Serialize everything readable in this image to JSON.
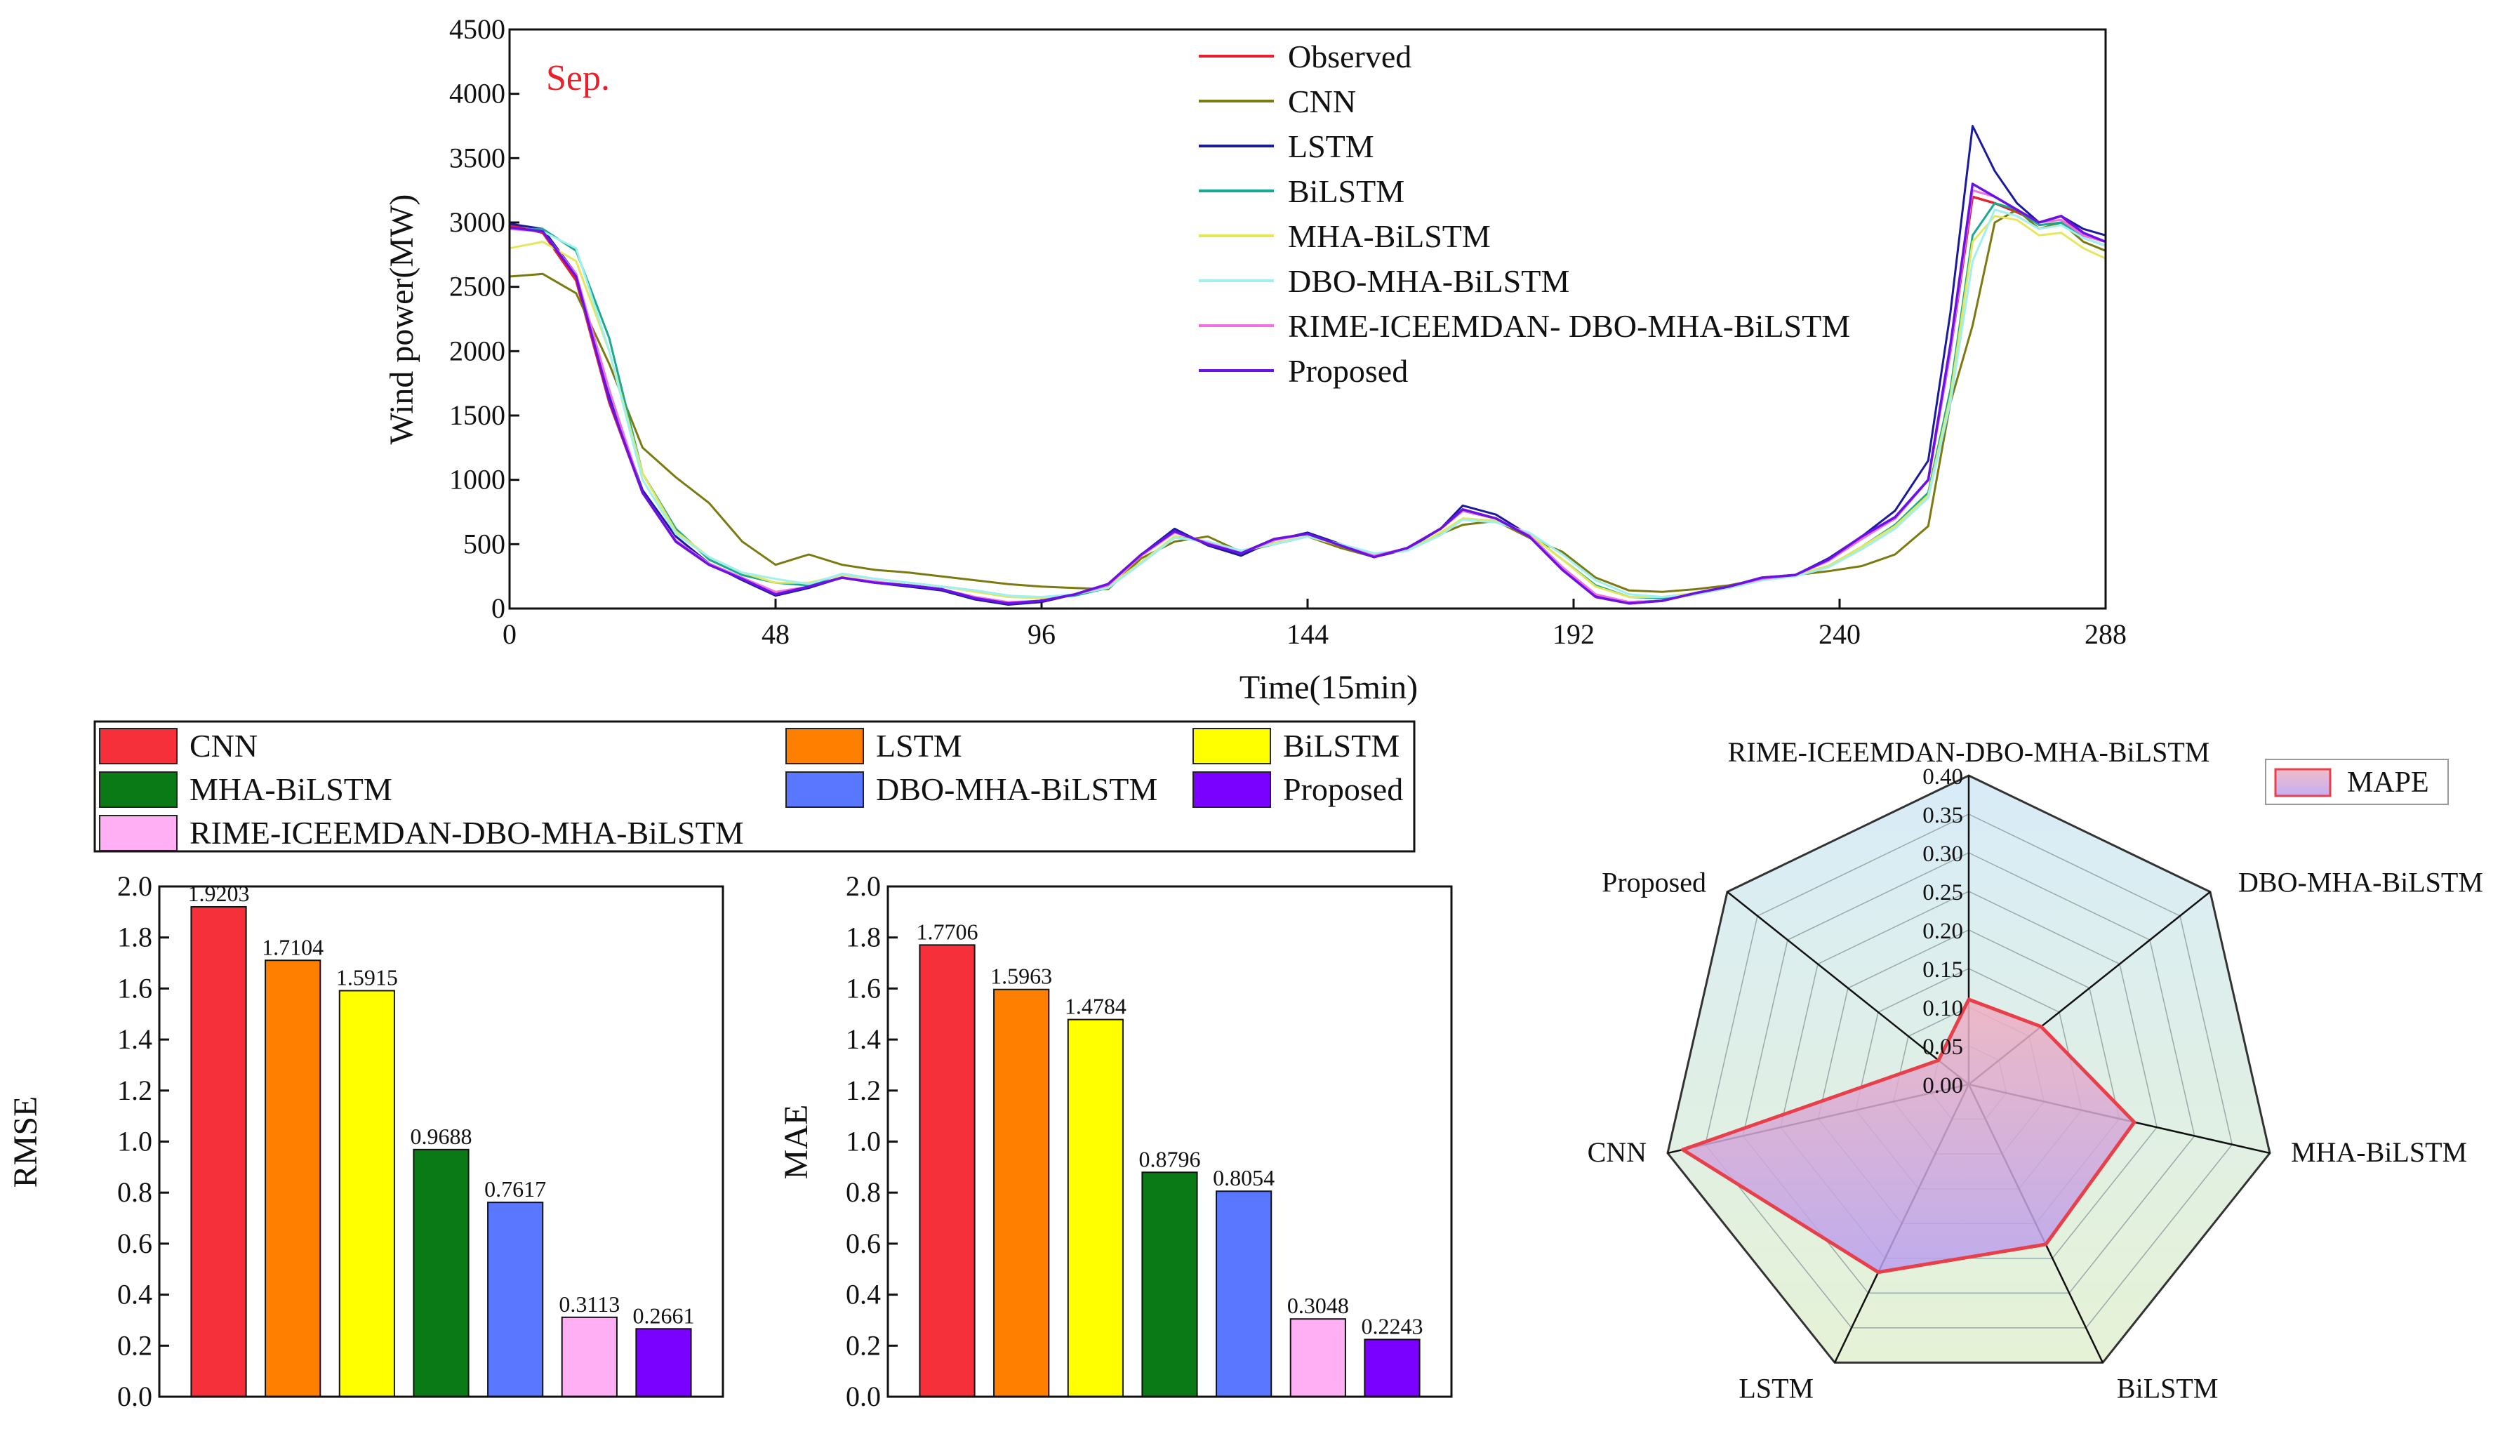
{
  "figure": {
    "colors": {
      "Observed": "#e8202a",
      "CNN": "#7a7a10",
      "LSTM": "#1a1a9e",
      "BiLSTM": "#1aa890",
      "MHA-BiLSTM": "#e6e65a",
      "DBO-MHA-BiLSTM": "#9ff0ee",
      "RIME-ICEEMDAN- DBO-MHA-BiLSTM": "#f070e0",
      "Proposed": "#6a12e6",
      "bar_CNN": "#f5303a",
      "bar_LSTM": "#ff8000",
      "bar_BiLSTM": "#ffff00",
      "bar_MHA": "#0a7a16",
      "bar_DBO": "#5a78ff",
      "bar_RIME": "#ffb0f4",
      "bar_Proposed": "#7a00ff",
      "radar_line": "#e8404a",
      "radar_fill": "#c9a8ef",
      "radar_outer_top": "#d8ecf8",
      "radar_outer_bottom": "#e6f2d6"
    },
    "bar_legend": {
      "items": [
        {
          "label": "CNN",
          "color_key": "bar_CNN"
        },
        {
          "label": "LSTM",
          "color_key": "bar_LSTM"
        },
        {
          "label": "BiLSTM",
          "color_key": "bar_BiLSTM"
        },
        {
          "label": "MHA-BiLSTM",
          "color_key": "bar_MHA"
        },
        {
          "label": "DBO-MHA-BiLSTM",
          "color_key": "bar_DBO"
        },
        {
          "label": "Proposed",
          "color_key": "bar_Proposed"
        },
        {
          "label": "RIME-ICEEMDAN-DBO-MHA-BiLSTM",
          "color_key": "bar_RIME"
        }
      ]
    }
  },
  "chart_data": [
    {
      "type": "line",
      "title": "",
      "annotation": "Sep.",
      "xlabel": "Time(15min)",
      "ylabel": "Wind power(MW)",
      "xlim": [
        0,
        288
      ],
      "ylim": [
        0,
        4500
      ],
      "xticks": [
        "0",
        "48",
        "96",
        "144",
        "192",
        "240",
        "288"
      ],
      "yticks": [
        "0",
        "500",
        "1000",
        "1500",
        "2000",
        "2500",
        "3000",
        "3500",
        "4000",
        "4500"
      ],
      "legend": [
        "Observed",
        "CNN",
        "LSTM",
        "BiLSTM",
        "MHA-BiLSTM",
        "DBO-MHA-BiLSTM",
        "RIME-ICEEMDAN- DBO-MHA-BiLSTM",
        "Proposed"
      ],
      "x": [
        0,
        6,
        12,
        18,
        24,
        30,
        36,
        42,
        48,
        54,
        60,
        66,
        72,
        78,
        84,
        90,
        96,
        102,
        108,
        114,
        120,
        126,
        132,
        138,
        144,
        150,
        156,
        162,
        168,
        172,
        178,
        184,
        190,
        196,
        202,
        208,
        214,
        220,
        226,
        232,
        238,
        244,
        250,
        256,
        260,
        264,
        268,
        272,
        276,
        280,
        284,
        288
      ],
      "series": [
        {
          "name": "Observed",
          "values": [
            2980,
            2920,
            2550,
            1600,
            900,
            520,
            340,
            230,
            110,
            170,
            240,
            200,
            180,
            150,
            80,
            40,
            60,
            110,
            190,
            420,
            600,
            500,
            430,
            540,
            580,
            490,
            400,
            470,
            620,
            760,
            700,
            560,
            300,
            90,
            40,
            60,
            120,
            170,
            240,
            260,
            380,
            560,
            700,
            1000,
            2000,
            3200,
            3150,
            3080,
            3000,
            3050,
            2900,
            2850
          ]
        },
        {
          "name": "CNN",
          "values": [
            2580,
            2600,
            2450,
            1900,
            1250,
            1020,
            820,
            520,
            340,
            420,
            340,
            300,
            280,
            250,
            220,
            190,
            170,
            160,
            150,
            390,
            520,
            560,
            440,
            500,
            560,
            470,
            400,
            460,
            580,
            650,
            680,
            550,
            440,
            240,
            140,
            130,
            150,
            180,
            230,
            260,
            290,
            330,
            420,
            640,
            1600,
            2200,
            3000,
            3100,
            2950,
            3000,
            2850,
            2780
          ]
        },
        {
          "name": "LSTM",
          "values": [
            2990,
            2950,
            2600,
            1650,
            920,
            560,
            350,
            220,
            100,
            160,
            240,
            200,
            170,
            140,
            70,
            30,
            50,
            110,
            180,
            420,
            620,
            490,
            410,
            530,
            590,
            500,
            400,
            460,
            620,
            800,
            730,
            570,
            320,
            100,
            50,
            60,
            120,
            170,
            240,
            260,
            390,
            560,
            760,
            1150,
            2300,
            3750,
            3400,
            3150,
            3000,
            3050,
            2950,
            2900
          ]
        },
        {
          "name": "BiLSTM",
          "values": [
            2950,
            2950,
            2780,
            2100,
            1050,
            620,
            380,
            260,
            200,
            180,
            270,
            230,
            200,
            170,
            140,
            100,
            80,
            100,
            160,
            360,
            560,
            520,
            450,
            500,
            560,
            500,
            420,
            450,
            580,
            700,
            680,
            580,
            380,
            180,
            90,
            80,
            110,
            160,
            220,
            260,
            330,
            480,
            650,
            900,
            1700,
            2900,
            3150,
            3100,
            2980,
            3000,
            2880,
            2820
          ]
        },
        {
          "name": "MHA-BiLSTM",
          "values": [
            2800,
            2850,
            2700,
            2000,
            1050,
            600,
            400,
            280,
            200,
            200,
            260,
            230,
            200,
            170,
            130,
            90,
            80,
            110,
            170,
            360,
            560,
            510,
            440,
            510,
            560,
            490,
            420,
            450,
            590,
            700,
            680,
            580,
            380,
            170,
            90,
            90,
            120,
            170,
            230,
            260,
            330,
            480,
            640,
            880,
            1650,
            2850,
            3050,
            3020,
            2900,
            2920,
            2800,
            2720
          ]
        },
        {
          "name": "DBO-MHA-BiLSTM",
          "values": [
            2950,
            2930,
            2800,
            2000,
            1000,
            580,
            400,
            280,
            230,
            190,
            270,
            230,
            200,
            170,
            140,
            100,
            90,
            110,
            160,
            350,
            550,
            520,
            450,
            500,
            560,
            500,
            430,
            450,
            570,
            690,
            670,
            590,
            420,
            220,
            110,
            90,
            110,
            160,
            220,
            250,
            320,
            460,
            620,
            860,
            1600,
            2700,
            3100,
            3050,
            2950,
            2980,
            2880,
            2820
          ]
        },
        {
          "name": "RIME-ICEEMDAN- DBO-MHA-BiLSTM",
          "values": [
            2950,
            2930,
            2600,
            1700,
            900,
            530,
            350,
            240,
            130,
            170,
            240,
            210,
            180,
            150,
            90,
            50,
            60,
            110,
            180,
            410,
            590,
            510,
            430,
            530,
            580,
            490,
            410,
            470,
            620,
            760,
            700,
            570,
            320,
            110,
            50,
            60,
            120,
            170,
            230,
            260,
            370,
            540,
            700,
            1000,
            2000,
            3250,
            3200,
            3100,
            3000,
            3020,
            2900,
            2850
          ]
        },
        {
          "name": "Proposed",
          "values": [
            2960,
            2930,
            2580,
            1620,
            900,
            520,
            340,
            230,
            110,
            170,
            240,
            200,
            180,
            150,
            80,
            40,
            60,
            110,
            190,
            420,
            600,
            500,
            430,
            540,
            580,
            490,
            400,
            470,
            620,
            770,
            700,
            560,
            300,
            90,
            40,
            60,
            120,
            170,
            240,
            260,
            380,
            560,
            710,
            1000,
            2050,
            3300,
            3200,
            3100,
            3000,
            3050,
            2920,
            2850
          ]
        }
      ]
    },
    {
      "type": "bar",
      "ylabel": "RMSE",
      "ylim": [
        0,
        2.0
      ],
      "yticks": [
        "0.0",
        "0.2",
        "0.4",
        "0.6",
        "0.8",
        "1.0",
        "1.2",
        "1.4",
        "1.6",
        "1.8",
        "2.0"
      ],
      "categories": [
        "CNN",
        "LSTM",
        "BiLSTM",
        "MHA-BiLSTM",
        "DBO-MHA-BiLSTM",
        "RIME-ICEEMDAN-DBO-MHA-BiLSTM",
        "Proposed"
      ],
      "values": [
        1.9203,
        1.7104,
        1.5915,
        0.9688,
        0.7617,
        0.3113,
        0.2661
      ],
      "labels": [
        "1.9203",
        "1.7104",
        "1.5915",
        "0.9688",
        "0.7617",
        "0.3113",
        "0.2661"
      ]
    },
    {
      "type": "bar",
      "ylabel": "MAE",
      "ylim": [
        0,
        2.0
      ],
      "yticks": [
        "0.0",
        "0.2",
        "0.4",
        "0.6",
        "0.8",
        "1.0",
        "1.2",
        "1.4",
        "1.6",
        "1.8",
        "2.0"
      ],
      "categories": [
        "CNN",
        "LSTM",
        "BiLSTM",
        "MHA-BiLSTM",
        "DBO-MHA-BiLSTM",
        "RIME-ICEEMDAN-DBO-MHA-BiLSTM",
        "Proposed"
      ],
      "values": [
        1.7706,
        1.5963,
        1.4784,
        0.8796,
        0.8054,
        0.3048,
        0.2243
      ],
      "labels": [
        "1.7706",
        "1.5963",
        "1.4784",
        "0.8796",
        "0.8054",
        "0.3048",
        "0.2243"
      ]
    },
    {
      "type": "radar",
      "legend": "MAPE",
      "rmax": 0.4,
      "rings": [
        "0.00",
        "0.05",
        "0.10",
        "0.15",
        "0.20",
        "0.25",
        "0.30",
        "0.35",
        "0.40"
      ],
      "axes": [
        "RIME-ICEEMDAN-DBO-MHA-BiLSTM",
        "DBO-MHA-BiLSTM",
        "MHA-BiLSTM",
        "BiLSTM",
        "LSTM",
        "CNN",
        "Proposed"
      ],
      "values": [
        0.11,
        0.12,
        0.22,
        0.23,
        0.27,
        0.38,
        0.05
      ]
    }
  ]
}
